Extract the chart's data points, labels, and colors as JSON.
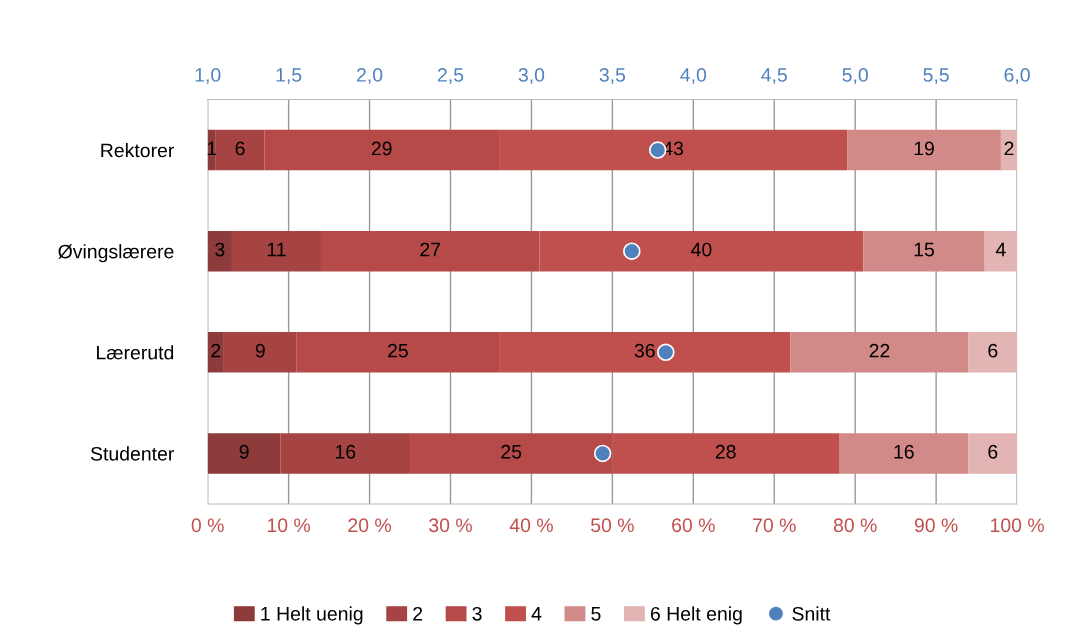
{
  "chart_data": {
    "type": "bar",
    "orientation": "horizontal",
    "stacked": true,
    "grid": "x",
    "legend": "bottom",
    "categories": [
      "Rektorer",
      "Øvingslærere",
      "Lærerutd",
      "Studenter"
    ],
    "series": [
      {
        "name": "1 Helt uenig",
        "color": "#8e3b3b",
        "values": [
          1,
          3,
          2,
          9
        ],
        "value_labels": [
          "1",
          "3",
          "2",
          "9"
        ]
      },
      {
        "name": "2",
        "color": "#a54443",
        "values": [
          6,
          11,
          9,
          16
        ],
        "value_labels": [
          "6",
          "11",
          "9",
          "16"
        ]
      },
      {
        "name": "3",
        "color": "#b54a48",
        "values": [
          29,
          27,
          25,
          25
        ],
        "value_labels": [
          "29",
          "27",
          "25",
          "25"
        ]
      },
      {
        "name": "4",
        "color": "#c0504d",
        "values": [
          43,
          40,
          36,
          28
        ],
        "value_labels": [
          "43",
          "40",
          "36",
          "28"
        ]
      },
      {
        "name": "5",
        "color": "#d28a88",
        "values": [
          19,
          15,
          22,
          16
        ],
        "value_labels": [
          "19",
          "15",
          "22",
          "16"
        ]
      },
      {
        "name": "6 Helt enig",
        "color": "#e2b4b3",
        "values": [
          2,
          4,
          6,
          6
        ],
        "value_labels": [
          "2",
          "4",
          "6",
          "6"
        ]
      },
      {
        "name": "Snitt",
        "type": "scatter",
        "axis": "x2",
        "marker": "circle",
        "color": "#4f81bd",
        "values": [
          3.78,
          3.62,
          3.83,
          3.44
        ]
      }
    ],
    "xlim": [
      0,
      100
    ],
    "xticks": [
      {
        "value": 0,
        "label": "0 %"
      },
      {
        "value": 10,
        "label": "10 %"
      },
      {
        "value": 20,
        "label": "20 %"
      },
      {
        "value": 30,
        "label": "30 %"
      },
      {
        "value": 40,
        "label": "40 %"
      },
      {
        "value": 50,
        "label": "50 %"
      },
      {
        "value": 60,
        "label": "60 %"
      },
      {
        "value": 70,
        "label": "70 %"
      },
      {
        "value": 80,
        "label": "80 %"
      },
      {
        "value": 90,
        "label": "90 %"
      },
      {
        "value": 100,
        "label": "100 %"
      }
    ],
    "x2lim": [
      1,
      6
    ],
    "x2ticks": [
      {
        "value": 1,
        "label": "1,0"
      },
      {
        "value": 1.5,
        "label": "1,5"
      },
      {
        "value": 2,
        "label": "2,0"
      },
      {
        "value": 2.5,
        "label": "2,5"
      },
      {
        "value": 3,
        "label": "3,0"
      },
      {
        "value": 3.5,
        "label": "3,5"
      },
      {
        "value": 4,
        "label": "4,0"
      },
      {
        "value": 4.5,
        "label": "4,5"
      },
      {
        "value": 5,
        "label": "5,0"
      },
      {
        "value": 5.5,
        "label": "5,5"
      },
      {
        "value": 6,
        "label": "6,0"
      }
    ]
  }
}
